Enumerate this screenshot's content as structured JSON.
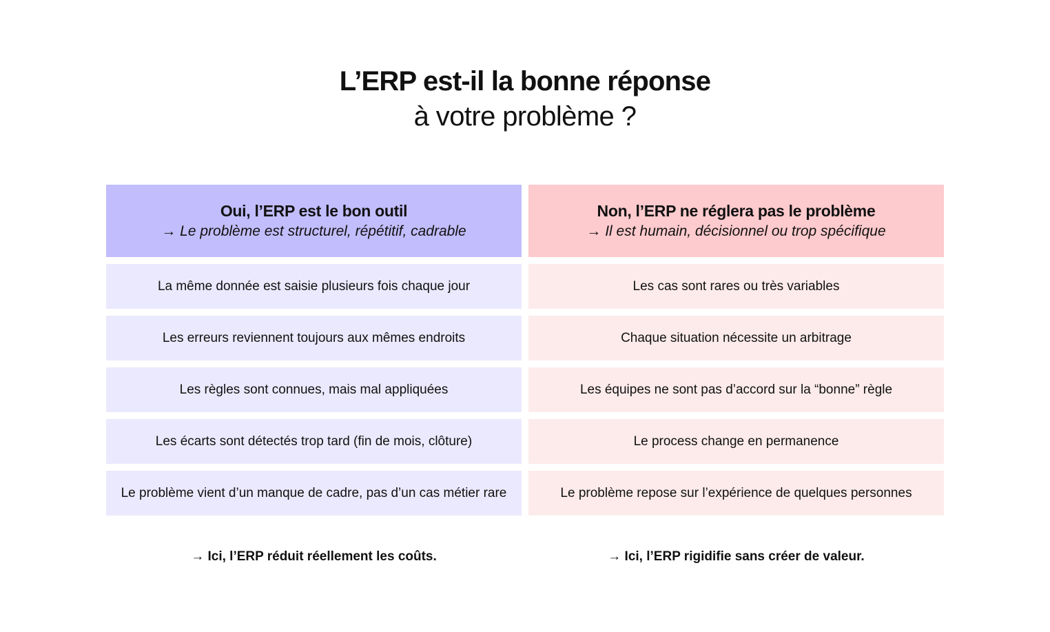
{
  "title": {
    "line1": "L’ERP est-il la bonne réponse",
    "line2": "à votre problème ?"
  },
  "left": {
    "header_title": "Oui, l’ERP est le bon outil",
    "header_subtitle": "→ Le problème est structurel, répétitif, cadrable",
    "rows": [
      "La même donnée est saisie plusieurs fois chaque jour",
      "Les erreurs reviennent toujours aux mêmes endroits",
      "Les règles sont connues, mais mal appliquées",
      "Les écarts sont détectés trop tard (fin de mois, clôture)",
      "Le problème vient d’un manque de cadre, pas d’un cas métier rare"
    ],
    "footer": "→ Ici, l’ERP réduit réellement les coûts."
  },
  "right": {
    "header_title": "Non, l’ERP ne réglera pas le problème",
    "header_subtitle": "→ Il est humain, décisionnel ou trop spécifique",
    "rows": [
      "Les cas sont rares ou très variables",
      "Chaque situation nécessite un arbitrage",
      "Les équipes ne sont pas d’accord sur la “bonne” règle",
      "Le process change en permanence",
      "Le problème repose sur l’expérience de quelques personnes"
    ],
    "footer": "→ Ici, l’ERP rigidifie sans créer de valeur."
  },
  "colors": {
    "left_header": "#c2bdfc",
    "left_row": "#ebe9fd",
    "right_header": "#fdcacd",
    "right_row": "#fdebeb"
  }
}
